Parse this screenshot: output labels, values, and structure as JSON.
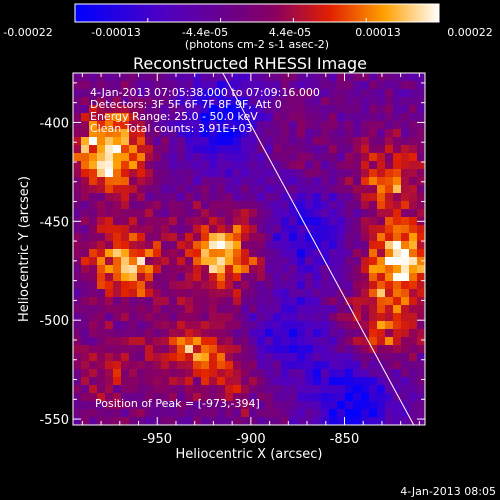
{
  "colorbar": {
    "tick_labels": [
      "-0.00022",
      "-0.00013",
      "-4.4e-05",
      "4.4e-05",
      "0.00013",
      "0.00022"
    ],
    "unit_label": "(photons cm-2 s-1 asec-2)",
    "range": [
      -0.00022,
      0.00022
    ]
  },
  "info_lines": [
    "4-Jan-2013 07:05:38.000 to 07:09:16.000",
    "Detectors: 3F 5F 6F 7F 8F 9F, Att 0",
    "Energy Range: 25.0 - 50.0 keV",
    "Clean   Total counts: 3.91E+03"
  ],
  "peak_text": "Position of Peak = [-973,-394]",
  "footer_date": "4-Jan-2013 08:05",
  "chart_data": {
    "type": "heatmap",
    "title": "Reconstructed RHESSI Image",
    "xlabel": "Heliocentric X (arcsec)",
    "ylabel": "Heliocentric Y (arcsec)",
    "xlim": [
      -995,
      -807
    ],
    "ylim": [
      -553,
      -375
    ],
    "x_ticks": [
      -950,
      -900,
      -850
    ],
    "y_ticks": [
      -400,
      -450,
      -500,
      -550
    ],
    "colormap": "blue-purple-red-orange-yellow-white",
    "colors": {
      "low": "#0000ff",
      "mid": "#700090",
      "high": "#ffffff"
    },
    "limb_line": {
      "from": [
        -915,
        -375
      ],
      "to": [
        -813,
        -553
      ]
    },
    "peak_position": [
      -973,
      -394
    ],
    "bright_regions": [
      {
        "x": -975,
        "y": -415,
        "level": 0.95
      },
      {
        "x": -968,
        "y": -470,
        "level": 0.85
      },
      {
        "x": -975,
        "y": -525,
        "level": 0.55
      },
      {
        "x": -915,
        "y": -465,
        "level": 0.85
      },
      {
        "x": -930,
        "y": -515,
        "level": 0.7
      },
      {
        "x": -905,
        "y": -530,
        "level": 0.5
      },
      {
        "x": -828,
        "y": -428,
        "level": 0.7
      },
      {
        "x": -820,
        "y": -470,
        "level": 0.9
      },
      {
        "x": -832,
        "y": -505,
        "level": 0.7
      },
      {
        "x": -880,
        "y": -408,
        "level": 0.45
      }
    ],
    "dim_regions": [
      {
        "x": -915,
        "y": -400,
        "level": 0.15
      },
      {
        "x": -870,
        "y": -455,
        "level": 0.2
      },
      {
        "x": -845,
        "y": -540,
        "level": 0.15
      },
      {
        "x": -880,
        "y": -510,
        "level": 0.22
      }
    ]
  }
}
